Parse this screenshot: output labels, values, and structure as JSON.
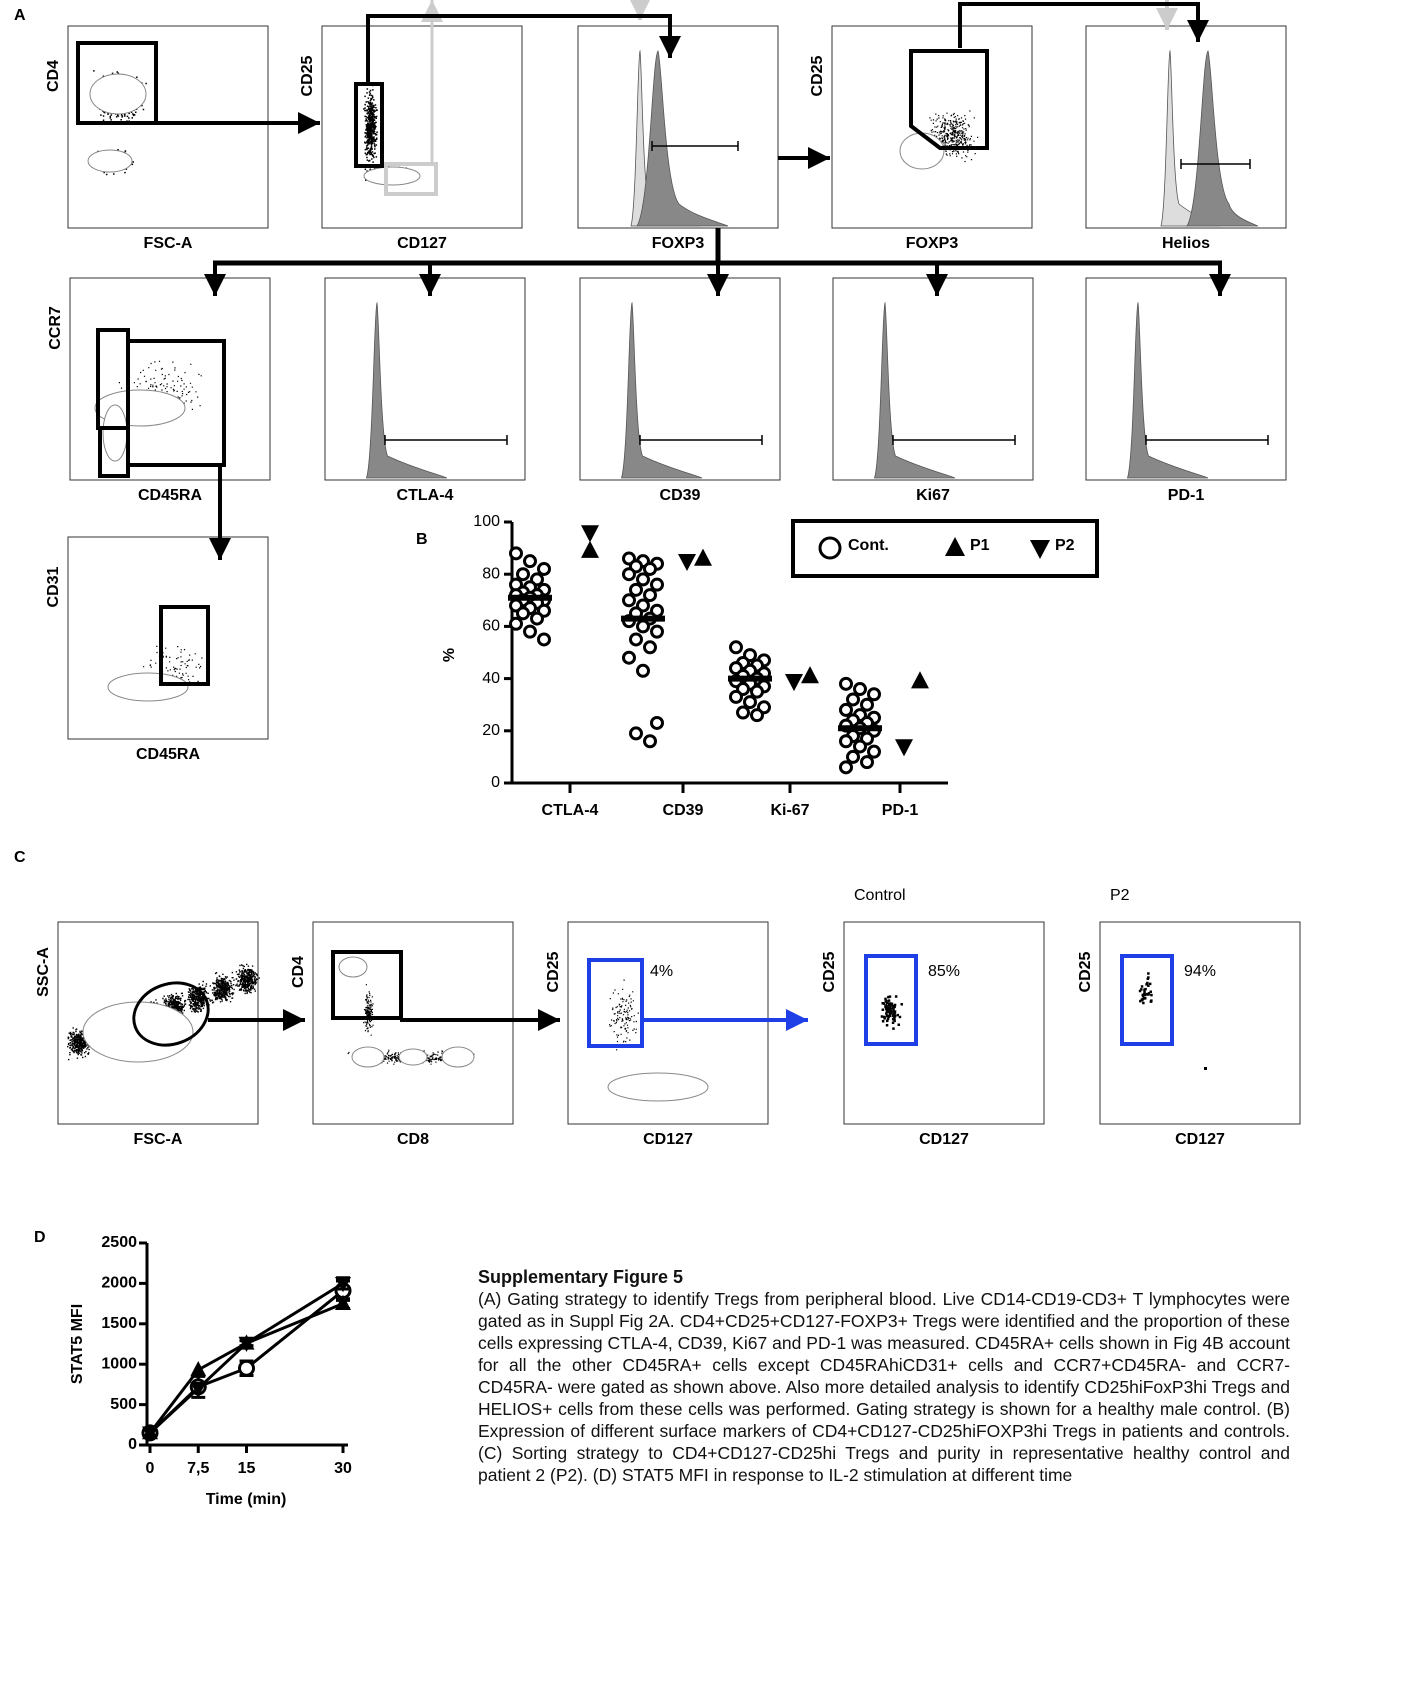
{
  "panel_labels": {
    "a": "A",
    "b": "B",
    "c": "C",
    "d": "D"
  },
  "panel_a": {
    "plots": [
      {
        "x_label": "FSC-A",
        "y_label": "CD4"
      },
      {
        "x_label": "CD127",
        "y_label": "CD25"
      },
      {
        "x_label": "FOXP3"
      },
      {
        "x_label": "FOXP3",
        "y_label": "CD25"
      },
      {
        "x_label": "Helios"
      },
      {
        "x_label": "CD45RA",
        "y_label": "CCR7"
      },
      {
        "x_label": "CTLA-4"
      },
      {
        "x_label": "CD39"
      },
      {
        "x_label": "Ki67"
      },
      {
        "x_label": "PD-1"
      },
      {
        "x_label": "CD45RA",
        "y_label": "CD31"
      }
    ]
  },
  "panel_c": {
    "plots": [
      {
        "x_label": "FSC-A",
        "y_label": "SSC-A"
      },
      {
        "x_label": "CD8",
        "y_label": "CD4"
      },
      {
        "x_label": "CD127",
        "y_label": "CD25",
        "gate_label": "4%"
      },
      {
        "title": "Control",
        "x_label": "CD127",
        "y_label": "CD25",
        "gate_label": "85%"
      },
      {
        "title": "P2",
        "x_label": "CD127",
        "y_label": "CD25",
        "gate_label": "94%"
      }
    ]
  },
  "chart_data": [
    {
      "type": "dotplot",
      "y_label": "%",
      "categories": [
        "CTLA-4",
        "CD39",
        "Ki-67",
        "PD-1"
      ],
      "ylim": [
        0,
        100
      ],
      "yticks": [
        0,
        20,
        40,
        60,
        80,
        100
      ],
      "series": [
        {
          "name": "Cont.",
          "marker": "circle",
          "color": "#000000",
          "values": [
            [
              88,
              85,
              82,
              80,
              78,
              76,
              75,
              74,
              73,
              72,
              72,
              71,
              70,
              70,
              69,
              68,
              67,
              66,
              65,
              63,
              61,
              58,
              55
            ],
            [
              86,
              85,
              84,
              83,
              82,
              80,
              78,
              76,
              74,
              72,
              70,
              68,
              66,
              65,
              63,
              62,
              60,
              58,
              55,
              52,
              48,
              43,
              23,
              19,
              16
            ],
            [
              52,
              49,
              47,
              46,
              45,
              44,
              43,
              42,
              41,
              40,
              39,
              38,
              37,
              36,
              35,
              33,
              31,
              29,
              27,
              26
            ],
            [
              38,
              36,
              34,
              32,
              30,
              28,
              26,
              25,
              24,
              23,
              22,
              21,
              20,
              18,
              17,
              16,
              14,
              12,
              10,
              8,
              6
            ]
          ],
          "means": [
            71,
            63,
            40,
            21
          ]
        },
        {
          "name": "P1",
          "marker": "triangle-up",
          "color": "#000000",
          "values": [
            89,
            86,
            41,
            39
          ]
        },
        {
          "name": "P2",
          "marker": "triangle-down",
          "color": "#000000",
          "values": [
            96,
            85,
            39,
            14
          ]
        }
      ]
    },
    {
      "type": "line",
      "x_label": "Time (min)",
      "y_label": "STAT5 MFI",
      "x": [
        0,
        7.5,
        15,
        30
      ],
      "xlim": [
        0,
        30
      ],
      "xticks": [
        0,
        {
          "value": 7.5,
          "label": "7,5"
        },
        15,
        30
      ],
      "ylim": [
        0,
        2500
      ],
      "yticks": [
        0,
        500,
        1000,
        1500,
        2000,
        2500
      ],
      "series": [
        {
          "marker": "circle",
          "color": "#000000",
          "values": [
            150,
            720,
            950,
            1910
          ],
          "errors": [
            40,
            130,
            90,
            120
          ]
        },
        {
          "marker": "triangle-up",
          "color": "#000000",
          "values": [
            150,
            930,
            1260,
            1750
          ],
          "errors": [
            0,
            0,
            30,
            60
          ]
        },
        {
          "marker": "triangle-down",
          "color": "#000000",
          "values": [
            150,
            700,
            1260,
            2000
          ],
          "errors": [
            0,
            0,
            0,
            70
          ]
        }
      ]
    }
  ],
  "caption": {
    "title": "Supplementary Figure 5",
    "text": "(A) Gating strategy to identify Tregs from peripheral blood. Live CD14-CD19-CD3+ T lymphocytes were gated as in Suppl Fig 2A. CD4+CD25+CD127-FOXP3+ Tregs were identified and the proportion of these cells expressing CTLA-4, CD39, Ki67 and PD-1 was measured. CD45RA+ cells shown in Fig 4B account for all the other CD45RA+ cells except CD45RAhiCD31+ cells and CCR7+CD45RA- and CCR7-CD45RA- were gated as shown above. Also more detailed analysis to identify CD25hiFoxP3hi Tregs and HELIOS+ cells from these cells was performed. Gating strategy is shown for a healthy male control. (B) Expression of different surface markers of CD4+CD127-CD25hiFOXP3hi Tregs in patients and controls. (C) Sorting strategy to CD4+CD127-CD25hi Tregs and purity in representative healthy control and patient 2 (P2). (D) STAT5 MFI in response to IL-2 stimulation at different time"
  }
}
